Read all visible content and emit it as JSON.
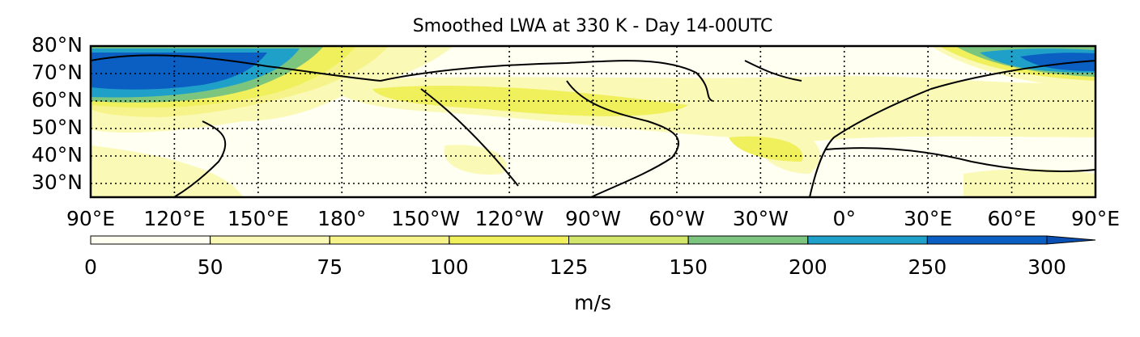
{
  "chart_data": {
    "type": "contour_map",
    "title": "Smoothed LWA at 330 K - Day 14-00UTC",
    "ylim": [
      25,
      80
    ],
    "yticks": [
      {
        "value": 30,
        "label": "30°N"
      },
      {
        "value": 40,
        "label": "40°N"
      },
      {
        "value": 50,
        "label": "50°N"
      },
      {
        "value": 60,
        "label": "60°N"
      },
      {
        "value": 70,
        "label": "70°N"
      },
      {
        "value": 80,
        "label": "80°N"
      }
    ],
    "xlim": [
      90,
      450
    ],
    "xticks": [
      {
        "value": 90,
        "label": "90°E"
      },
      {
        "value": 120,
        "label": "120°E"
      },
      {
        "value": 150,
        "label": "150°E"
      },
      {
        "value": 180,
        "label": "180°"
      },
      {
        "value": 210,
        "label": "150°W"
      },
      {
        "value": 240,
        "label": "120°W"
      },
      {
        "value": 270,
        "label": "90°W"
      },
      {
        "value": 300,
        "label": "60°W"
      },
      {
        "value": 330,
        "label": "30°W"
      },
      {
        "value": 360,
        "label": "0°"
      },
      {
        "value": 390,
        "label": "30°E"
      },
      {
        "value": 420,
        "label": "60°E"
      },
      {
        "value": 450,
        "label": "90°E"
      }
    ],
    "grid": true,
    "colorbar": {
      "levels": [
        0,
        50,
        75,
        100,
        125,
        150,
        200,
        250,
        300
      ],
      "colors": [
        "#fffff2",
        "#fbf9b6",
        "#f6f38a",
        "#f0ef5c",
        "#d2e66c",
        "#7cc57e",
        "#1fa0c9",
        "#0b5fc2"
      ],
      "extend_color": "#0a4fb4",
      "label": "m/s"
    }
  }
}
